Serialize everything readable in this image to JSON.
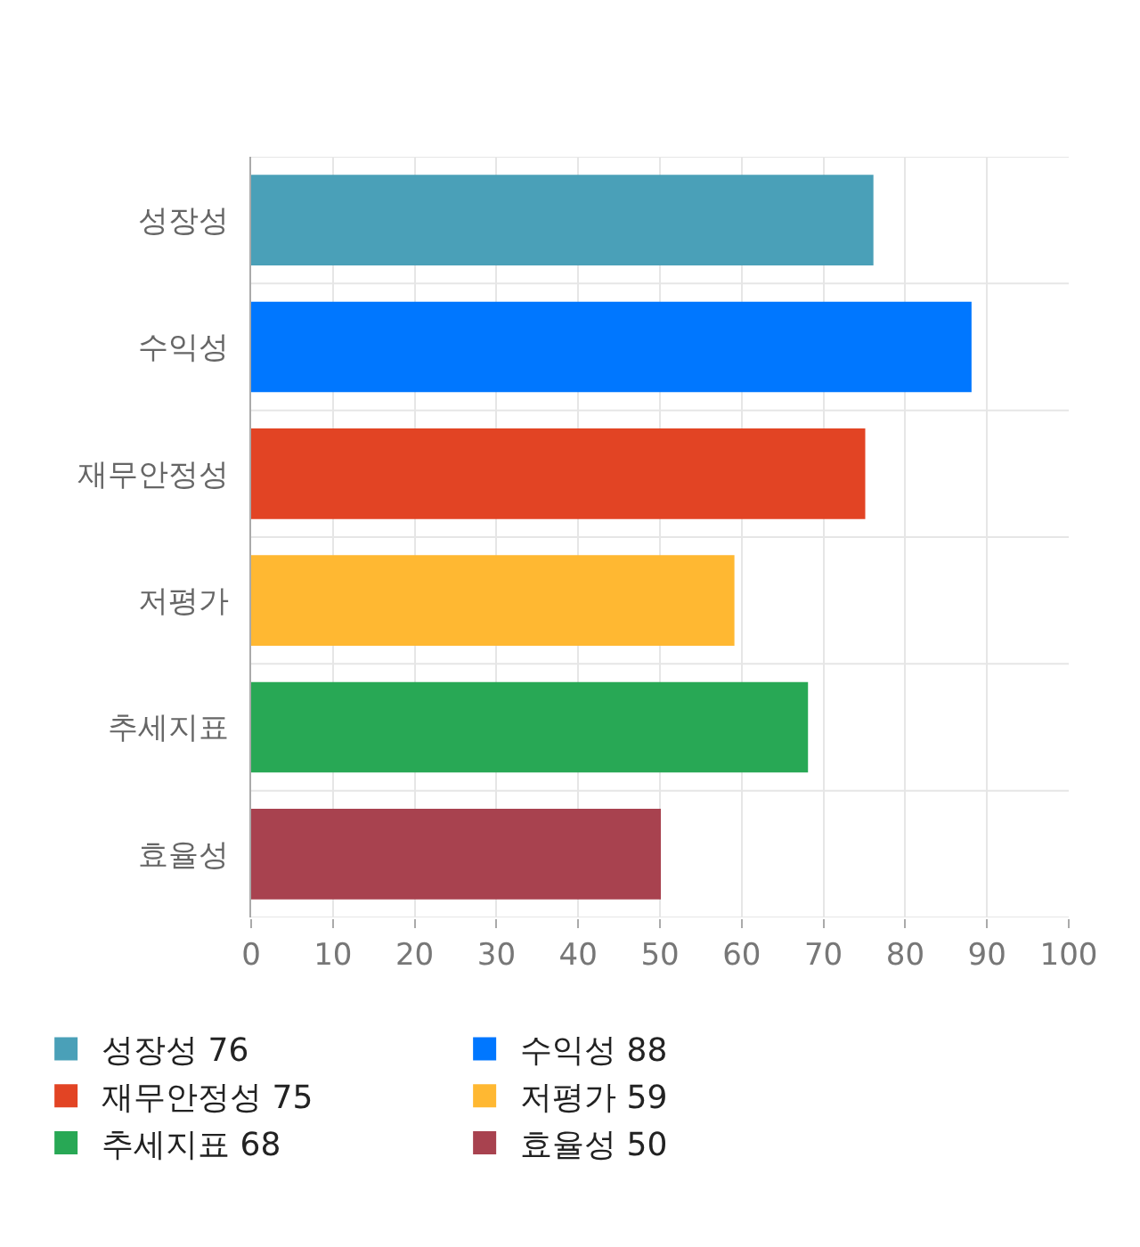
{
  "chart_data": {
    "type": "bar",
    "orientation": "horizontal",
    "categories": [
      "성장성",
      "수익성",
      "재무안정성",
      "저평가",
      "추세지표",
      "효율성"
    ],
    "series": [
      {
        "name": "성장성 76",
        "color": "#4aa0b8",
        "values": [
          76,
          null,
          null,
          null,
          null,
          null
        ]
      },
      {
        "name": "수익성 88",
        "color": "#0077ff",
        "values": [
          null,
          88,
          null,
          null,
          null,
          null
        ]
      },
      {
        "name": "재무안정성 75",
        "color": "#e24424",
        "values": [
          null,
          null,
          75,
          null,
          null,
          null
        ]
      },
      {
        "name": "저평가 59",
        "color": "#ffb832",
        "values": [
          null,
          null,
          null,
          59,
          null,
          null
        ]
      },
      {
        "name": "추세지표 68",
        "color": "#28a855",
        "values": [
          null,
          null,
          null,
          null,
          68,
          null
        ]
      },
      {
        "name": "효율성 50",
        "color": "#a8424f",
        "values": [
          null,
          null,
          null,
          null,
          null,
          50
        ]
      }
    ],
    "xlim": [
      0,
      100
    ],
    "xticks": [
      0,
      10,
      20,
      30,
      40,
      50,
      60,
      70,
      80,
      90,
      100
    ],
    "grid": true,
    "legend": "bottom"
  }
}
